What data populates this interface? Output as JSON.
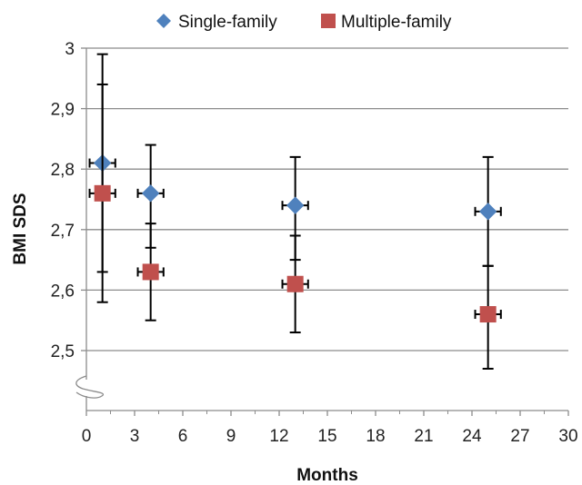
{
  "chart_data": {
    "type": "scatter",
    "xlabel": "Months",
    "ylabel": "BMI SDS",
    "xlim": [
      0,
      30
    ],
    "ylim": [
      2.5,
      3.0
    ],
    "axis_break": "y-axis below 2,5",
    "x_ticks": [
      "0",
      "3",
      "6",
      "9",
      "12",
      "15",
      "18",
      "21",
      "24",
      "27",
      "30"
    ],
    "y_ticks": [
      "2,5",
      "2,6",
      "2,7",
      "2,8",
      "2,9",
      "3"
    ],
    "grid": "horizontal",
    "legend_position": "top",
    "series": [
      {
        "name": "Single-family",
        "marker": "diamond",
        "color": "#4f81bd",
        "points": [
          {
            "x": 1,
            "y": 2.81,
            "y_err_low": 2.63,
            "y_err_high": 2.99,
            "x_err": 0.8
          },
          {
            "x": 4,
            "y": 2.76,
            "y_err_low": 2.67,
            "y_err_high": 2.84,
            "x_err": 0.8
          },
          {
            "x": 13,
            "y": 2.74,
            "y_err_low": 2.65,
            "y_err_high": 2.82,
            "x_err": 0.8
          },
          {
            "x": 25,
            "y": 2.73,
            "y_err_low": 2.64,
            "y_err_high": 2.82,
            "x_err": 0.8
          }
        ]
      },
      {
        "name": "Multiple-family",
        "marker": "square",
        "color": "#c0504d",
        "points": [
          {
            "x": 1,
            "y": 2.76,
            "y_err_low": 2.58,
            "y_err_high": 2.94,
            "x_err": 0.8
          },
          {
            "x": 4,
            "y": 2.63,
            "y_err_low": 2.55,
            "y_err_high": 2.71,
            "x_err": 0.8
          },
          {
            "x": 13,
            "y": 2.61,
            "y_err_low": 2.53,
            "y_err_high": 2.69,
            "x_err": 0.8
          },
          {
            "x": 25,
            "y": 2.56,
            "y_err_low": 2.47,
            "y_err_high": 2.64,
            "x_err": 0.8
          }
        ]
      }
    ]
  }
}
